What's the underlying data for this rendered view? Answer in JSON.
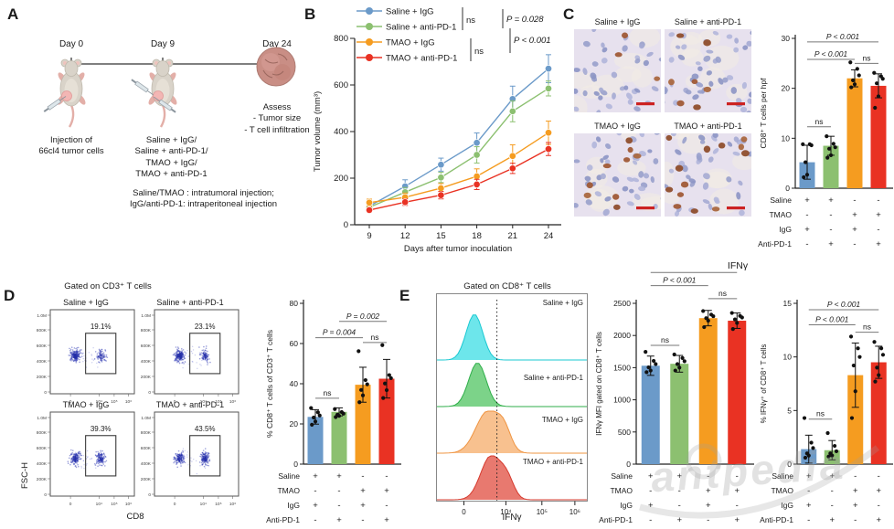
{
  "figure": {
    "watermark": "antpedia",
    "groups": [
      "Saline + IgG",
      "Saline + anti-PD-1",
      "TMAO + IgG",
      "TMAO + anti-PD-1"
    ],
    "group_colors": [
      "#6B9AC9",
      "#8CC070",
      "#F59C20",
      "#E93223"
    ],
    "treatment_matrix": {
      "rows": [
        "Saline",
        "TMAO",
        "IgG",
        "Anti-PD-1"
      ],
      "signs": [
        [
          "+",
          "+",
          "-",
          "-"
        ],
        [
          "-",
          "-",
          "+",
          "+"
        ],
        [
          "+",
          "-",
          "+",
          "-"
        ],
        [
          "-",
          "+",
          "-",
          "+"
        ]
      ]
    }
  },
  "panel_a": {
    "label": "A",
    "days": [
      "Day 0",
      "Day 9",
      "Day 24"
    ],
    "caption_day0": "Injection of\n66cl4 tumor cells",
    "caption_day9": "Saline + IgG/\nSaline + anti-PD-1/\nTMAO + IgG/\nTMAO + anti-PD-1",
    "caption_day24": "Assess\n- Tumor size\n- T cell infiltration",
    "notes": "Saline/TMAO : intratumoral injection;\nIgG/anti-PD-1: intraperitoneal injection"
  },
  "panel_b": {
    "label": "B"
  },
  "panel_c": {
    "label": "C",
    "image_titles": [
      "Saline + IgG",
      "Saline + anti-PD-1",
      "TMAO + IgG",
      "TMAO + anti-PD-1"
    ],
    "scalebar_color": "#CC2222"
  },
  "panel_d": {
    "label": "D",
    "header": "Gated on CD3⁺ T cells",
    "flow": {
      "titles": [
        "Saline + IgG",
        "Saline + anti-PD-1",
        "TMAO + IgG",
        "TMAO + anti-PD-1"
      ],
      "percents": [
        "19.1%",
        "23.1%",
        "39.3%",
        "43.5%"
      ],
      "yticks": [
        "1.0M",
        "800K",
        "600K",
        "400K",
        "200K",
        "0"
      ],
      "xticks": [
        "0",
        "10⁴",
        "10⁵",
        "10⁶"
      ],
      "ylabel": "FSC-H",
      "xlabel": "CD8"
    }
  },
  "panel_e": {
    "label": "E",
    "header": "Gated on CD8⁺ T cells",
    "ifny_title": "IFNγ",
    "hist_xlabel": "IFNγ"
  },
  "chart_data": [
    {
      "id": "tumor-volume",
      "type": "line",
      "x": [
        9,
        12,
        15,
        18,
        21,
        24
      ],
      "xlabel": "Days after tumor inoculation",
      "ylabel": "Tumor volume (mm³)",
      "ylim": [
        0,
        800
      ],
      "yticks": [
        0,
        200,
        400,
        600,
        800
      ],
      "series": [
        {
          "name": "Saline + IgG",
          "color": "#6B9AC9",
          "values": [
            80,
            165,
            258,
            352,
            540,
            670
          ],
          "err": [
            20,
            28,
            28,
            42,
            55,
            60
          ]
        },
        {
          "name": "Saline + anti-PD-1",
          "color": "#8CC070",
          "values": [
            75,
            140,
            203,
            300,
            487,
            585
          ],
          "err": [
            15,
            20,
            22,
            35,
            45,
            32
          ]
        },
        {
          "name": "TMAO + IgG",
          "color": "#F59C20",
          "values": [
            95,
            118,
            157,
            208,
            295,
            395
          ],
          "err": [
            15,
            18,
            20,
            32,
            48,
            50
          ]
        },
        {
          "name": "TMAO + anti-PD-1",
          "color": "#E93223",
          "values": [
            63,
            97,
            127,
            173,
            242,
            325
          ],
          "err": [
            10,
            14,
            16,
            22,
            22,
            28
          ]
        }
      ],
      "legend_stats": [
        "ns",
        "ns",
        "P = 0.028",
        "P < 0.001"
      ]
    },
    {
      "id": "cd8-per-hpf",
      "type": "bar",
      "ylabel": "CD8⁺ T cells per hpf",
      "ylim": [
        0,
        30
      ],
      "yticks": [
        0,
        10,
        20,
        30
      ],
      "values": [
        5.2,
        8.5,
        22,
        20.5
      ],
      "errors": [
        3.4,
        1.9,
        1.7,
        2.4
      ],
      "points": [
        [
          8.8,
          8.8,
          8.6,
          5.2,
          2.7,
          2.2
        ],
        [
          10.4,
          8.9,
          8.2,
          7.9,
          6.6,
          6.1
        ],
        [
          25.2,
          23.9,
          22.6,
          21.6,
          20.8,
          20.2
        ],
        [
          23.1,
          22.4,
          21.9,
          21.0,
          18.4,
          16.1
        ]
      ],
      "sig": [
        {
          "a": 0,
          "b": 1,
          "label": "ns",
          "yv": 12.3
        },
        {
          "a": 0,
          "b": 2,
          "label": "P < 0.001",
          "yv": 25.8
        },
        {
          "a": 0,
          "b": 3,
          "label": "P < 0.001",
          "yv": 29.3
        },
        {
          "a": 2,
          "b": 3,
          "label": "ns",
          "yv": 25.0
        }
      ]
    },
    {
      "id": "cd8-of-cd3",
      "type": "bar",
      "ylabel": "% CD8⁺ T cells of CD3⁺ T cells",
      "ylim": [
        0,
        80
      ],
      "yticks": [
        0,
        20,
        40,
        60,
        80
      ],
      "values": [
        23.5,
        26,
        39.5,
        42.5
      ],
      "errors": [
        3.6,
        2.0,
        8.7,
        9.6
      ],
      "points": [
        [
          27.9,
          25.8,
          24.2,
          23.2,
          21.2,
          19.6
        ],
        [
          27.4,
          25.9,
          25.1,
          24.6,
          24.0,
          23.4
        ],
        [
          56.2,
          41.8,
          39.7,
          36.9,
          34.2,
          30.8
        ],
        [
          59.2,
          44.3,
          42.8,
          40.1,
          36.8,
          32.9
        ]
      ],
      "sig": [
        {
          "a": 0,
          "b": 1,
          "label": "ns",
          "yv": 32.8
        },
        {
          "a": 0,
          "b": 2,
          "label": "P = 0.004",
          "yv": 62.9
        },
        {
          "a": 1,
          "b": 3,
          "label": "P = 0.002",
          "yv": 71.0
        },
        {
          "a": 2,
          "b": 3,
          "label": "ns",
          "yv": 60.5
        }
      ]
    },
    {
      "id": "ifny-mfi",
      "type": "bar",
      "ylabel": "IFNγ MFI gated on CD8⁺ T cells",
      "ylim": [
        0,
        2500
      ],
      "yticks": [
        0,
        500,
        1000,
        1500,
        2000,
        2500
      ],
      "values": [
        1530,
        1560,
        2270,
        2230
      ],
      "errors": [
        150,
        130,
        120,
        120
      ],
      "points": [
        [
          1745,
          1605,
          1555,
          1505,
          1455,
          1430
        ],
        [
          1705,
          1650,
          1600,
          1555,
          1500,
          1455
        ],
        [
          2380,
          2325,
          2300,
          2270,
          2230,
          2130
        ],
        [
          2350,
          2305,
          2280,
          2250,
          2195,
          2100
        ]
      ],
      "sig": [
        {
          "a": 0,
          "b": 1,
          "label": "ns",
          "yv": 1846
        },
        {
          "a": 0,
          "b": 2,
          "label": "P < 0.001",
          "yv": 2776
        },
        {
          "a": 0,
          "b": 3,
          "label": "P < 0.001",
          "yv": 2980
        },
        {
          "a": 2,
          "b": 3,
          "label": "ns",
          "yv": 2573
        }
      ]
    },
    {
      "id": "ifny-pct",
      "type": "bar",
      "ylabel": "% IFNγ⁺ of CD8⁺ T cells",
      "ylim": [
        0,
        15
      ],
      "yticks": [
        0,
        5,
        10,
        15
      ],
      "values": [
        1.4,
        1.3,
        8.3,
        9.5
      ],
      "errors": [
        1.3,
        0.9,
        3.0,
        1.5
      ],
      "points": [
        [
          4.3,
          2.0,
          1.5,
          1.0,
          0.8,
          0.6
        ],
        [
          2.9,
          1.7,
          1.2,
          1.0,
          0.8,
          0.7
        ],
        [
          11.9,
          10.8,
          10.0,
          9.2,
          6.8,
          4.3
        ],
        [
          11.4,
          10.8,
          10.2,
          9.0,
          8.3,
          7.7
        ]
      ],
      "sig": [
        {
          "a": 0,
          "b": 1,
          "label": "ns",
          "yv": 4.2
        },
        {
          "a": 0,
          "b": 2,
          "label": "P < 0.001",
          "yv": 13.0
        },
        {
          "a": 0,
          "b": 3,
          "label": "P < 0.001",
          "yv": 14.4
        },
        {
          "a": 2,
          "b": 3,
          "label": "ns",
          "yv": 12.3
        }
      ]
    },
    {
      "id": "ifny-histogram",
      "type": "area",
      "xlabel": "IFNγ",
      "xticks": [
        "0",
        "10⁴",
        "10⁵",
        "10⁶"
      ],
      "labels": [
        "Saline + IgG",
        "Saline + anti-PD-1",
        "TMAO + IgG",
        "TMAO + anti-PD-1"
      ],
      "fills": [
        "#49E0E6",
        "#5BC86B",
        "#F6B273",
        "#E2574B"
      ],
      "strokes": [
        "#19C8D2",
        "#2FAE4A",
        "#EF9441",
        "#D63A2E"
      ],
      "mus": [
        0.25,
        0.27,
        0.34,
        0.36
      ],
      "sigmas": [
        0.055,
        0.058,
        0.08,
        0.068
      ],
      "gate_fx": 0.4
    }
  ]
}
